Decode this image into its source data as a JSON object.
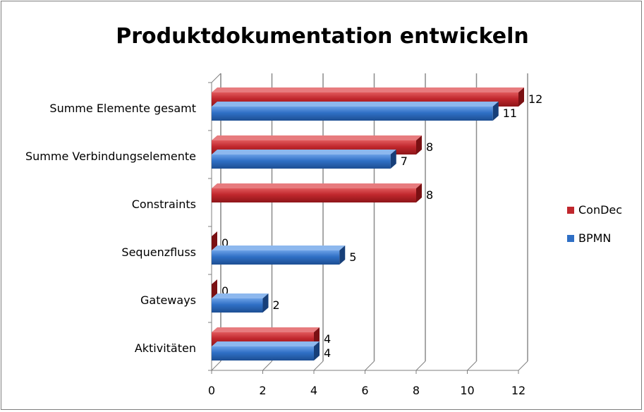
{
  "chart_data": {
    "type": "bar",
    "orientation": "horizontal",
    "title": "Produktdokumentation entwickeln",
    "categories": [
      "Summe Elemente gesamt",
      "Summe Verbindungselemente",
      "Constraints",
      "Sequenzfluss",
      "Gateways",
      "Aktivitäten"
    ],
    "series": [
      {
        "name": "ConDec",
        "color": "#c0272d",
        "values": [
          12,
          8,
          8,
          0,
          0,
          4
        ]
      },
      {
        "name": "BPMN",
        "color": "#2f6fc5",
        "values": [
          11,
          7,
          null,
          5,
          2,
          4
        ]
      }
    ],
    "xlim": [
      0,
      12
    ],
    "xticks": [
      "0",
      "2",
      "4",
      "6",
      "8",
      "10",
      "12"
    ],
    "grid": true,
    "legend_position": "right"
  }
}
